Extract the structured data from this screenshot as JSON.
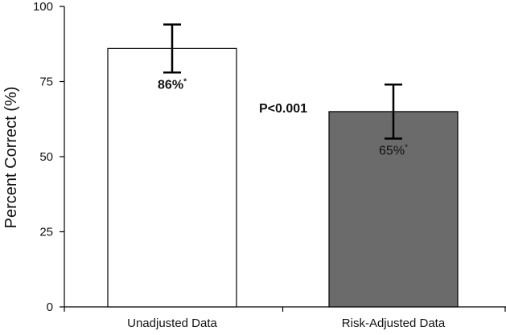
{
  "chart_data": {
    "type": "bar",
    "categories": [
      "Unadjusted Data",
      "Risk-Adjusted Data"
    ],
    "values": [
      86,
      65
    ],
    "errors": [
      {
        "low": 78,
        "high": 94
      },
      {
        "low": 56,
        "high": 74
      }
    ],
    "value_labels": [
      "86%",
      "65%"
    ],
    "value_label_marks": [
      "*",
      "*"
    ],
    "bar_colors": [
      "#ffffff",
      "#6b6b6b"
    ],
    "ylabel": "Percent Correct  (%)",
    "ylim": [
      0,
      100
    ],
    "yticks": [
      0,
      25,
      50,
      75,
      100
    ],
    "annotation": "P<0.001",
    "grid": false
  }
}
